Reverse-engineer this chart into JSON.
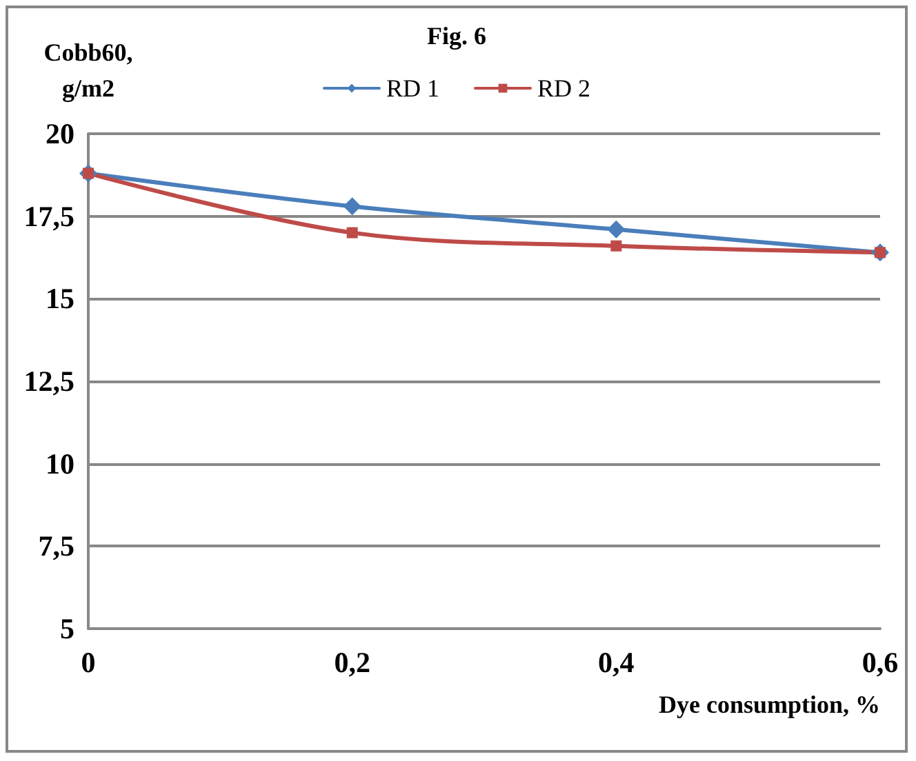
{
  "chart_data": {
    "type": "line",
    "title": "Fig. 6",
    "ylabel": "Cobb60, g/m2",
    "xlabel": "Dye consumption, %",
    "categories": [
      "0",
      "0,2",
      "0,4",
      "0,6"
    ],
    "series": [
      {
        "name": "RD 1",
        "color": "#4a7ebb",
        "marker": "diamond",
        "values": [
          18.8,
          17.8,
          17.1,
          16.4
        ]
      },
      {
        "name": "RD 2",
        "color": "#be4b48",
        "marker": "square",
        "values": [
          18.8,
          17.0,
          16.6,
          16.4
        ]
      }
    ],
    "ylim": [
      5,
      20
    ],
    "yticks": [
      5,
      {
        "value": 7.5,
        "label": "7,5"
      },
      10,
      {
        "value": 12.5,
        "label": "12,5"
      },
      15,
      {
        "value": 17.5,
        "label": "17,5"
      },
      20
    ],
    "grid": "y",
    "legend": "top"
  }
}
